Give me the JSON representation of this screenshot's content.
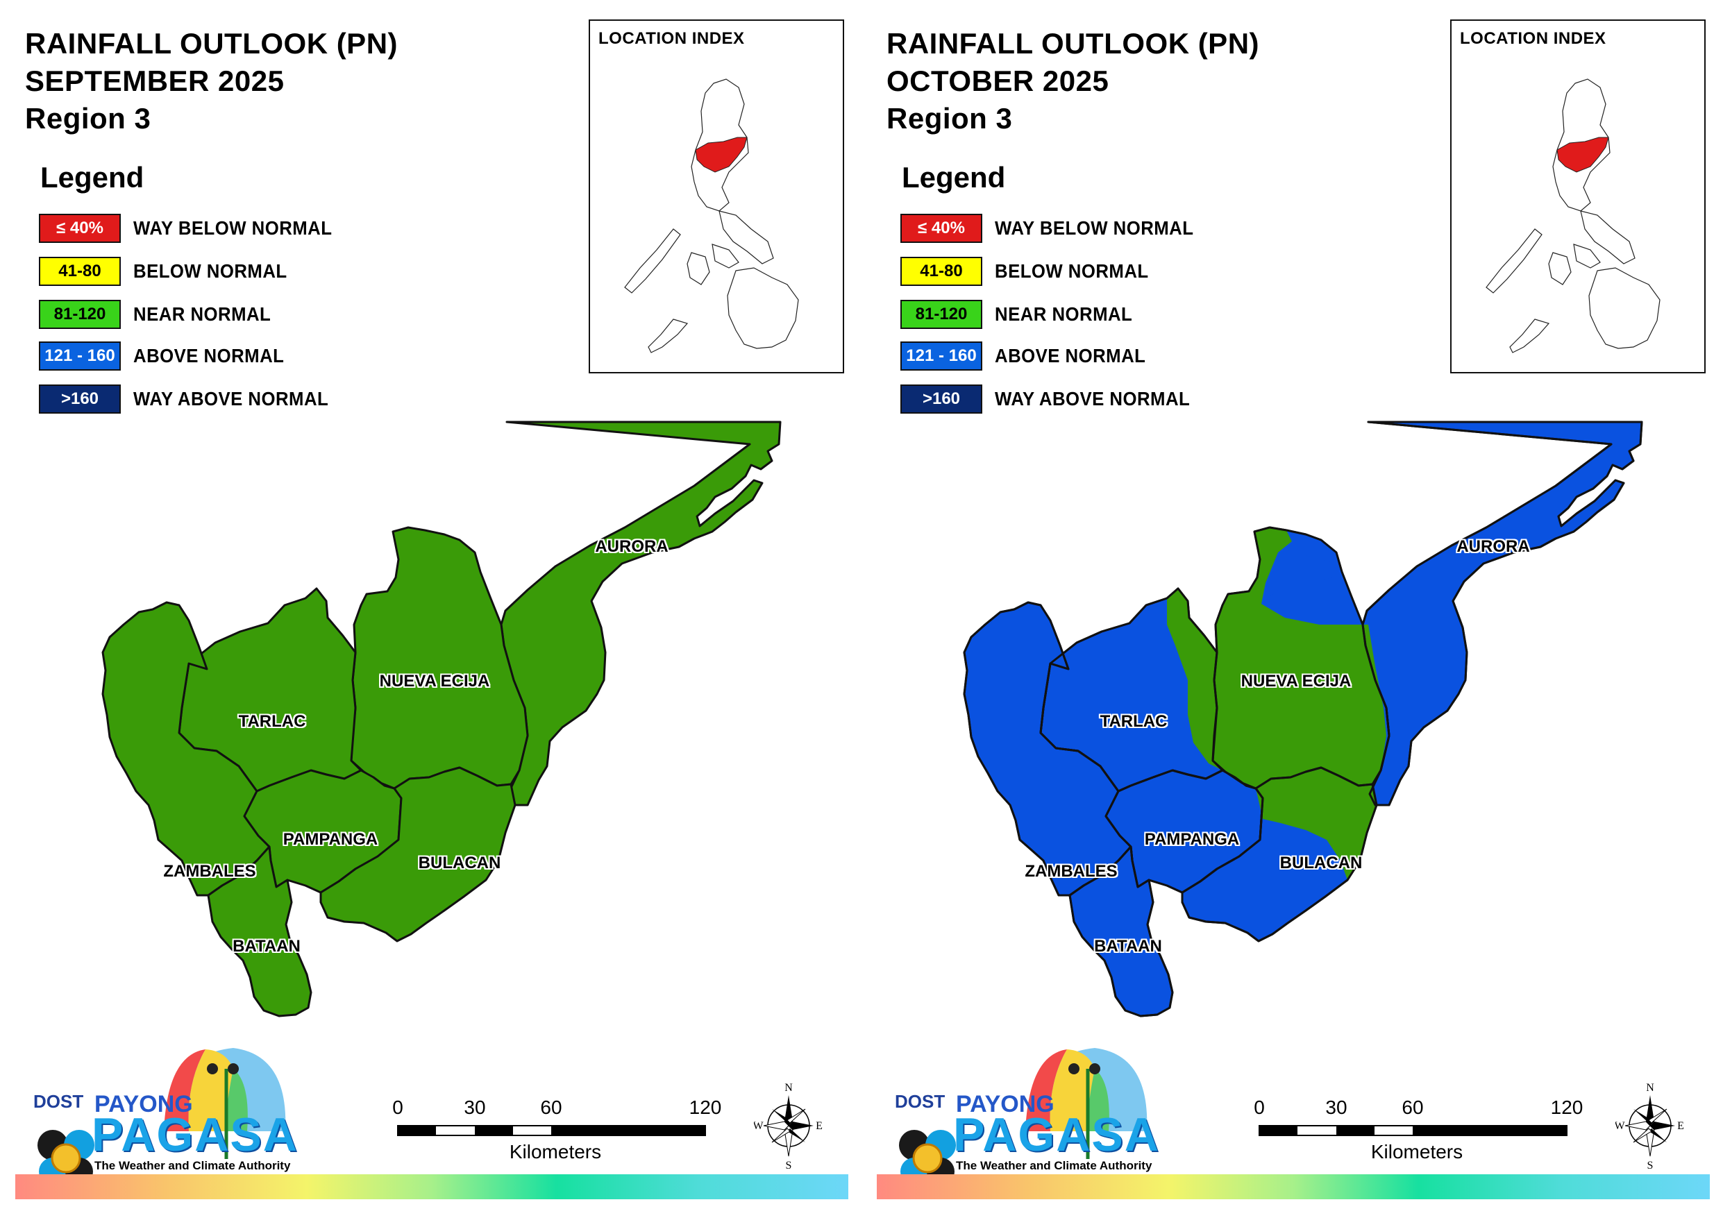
{
  "legend": {
    "title": "Legend",
    "items": [
      {
        "range": "≤ 40%",
        "label": "WAY BELOW NORMAL",
        "color": "#e01b1b",
        "text_color": "#ffffff"
      },
      {
        "range": "41-80",
        "label": "BELOW NORMAL",
        "color": "#ffff00",
        "text_color": "#000000"
      },
      {
        "range": "81-120",
        "label": "NEAR NORMAL",
        "color": "#39d31a",
        "text_color": "#000000"
      },
      {
        "range": "121 - 160",
        "label": "ABOVE NORMAL",
        "color": "#0a63e0",
        "text_color": "#ffffff"
      },
      {
        "range": ">160",
        "label": "WAY ABOVE NORMAL",
        "color": "#0a2a72",
        "text_color": "#ffffff"
      }
    ]
  },
  "location_index": {
    "title": "LOCATION INDEX",
    "highlight_color": "#e01b1b"
  },
  "panels": [
    {
      "title_line1": "RAINFALL OUTLOOK (PN)",
      "title_line2": "SEPTEMBER 2025",
      "title_line3": "Region 3",
      "category": "NEAR NORMAL",
      "provinces": {
        "aurora": "NEAR NORMAL",
        "nueva_ecija": "NEAR NORMAL",
        "tarlac": "NEAR NORMAL",
        "zambales": "NEAR NORMAL",
        "pampanga": "NEAR NORMAL",
        "bulacan": "NEAR NORMAL",
        "bataan": "NEAR NORMAL"
      }
    },
    {
      "title_line1": "RAINFALL OUTLOOK (PN)",
      "title_line2": "OCTOBER 2025",
      "title_line3": "Region 3",
      "category": "ABOVE NORMAL",
      "provinces": {
        "aurora": "ABOVE NORMAL",
        "nueva_ecija": "NEAR NORMAL / ABOVE NORMAL",
        "tarlac": "ABOVE NORMAL",
        "zambales": "ABOVE NORMAL",
        "pampanga": "ABOVE NORMAL",
        "bulacan": "ABOVE NORMAL / NEAR NORMAL",
        "bataan": "ABOVE NORMAL"
      }
    }
  ],
  "province_labels": {
    "aurora": "AURORA",
    "nueva_ecija": "NUEVA ECIJA",
    "tarlac": "TARLAC",
    "pampanga": "PAMPANGA",
    "zambales": "ZAMBALES",
    "bulacan": "BULACAN",
    "bataan": "BATAAN"
  },
  "map_colors": {
    "near_normal_fill": "#3a9b08",
    "above_normal_fill": "#0a52e0",
    "border": "#111111"
  },
  "scale": {
    "ticks": [
      "0",
      "30",
      "60",
      "120"
    ],
    "unit": "Kilometers"
  },
  "compass": {
    "n": "N",
    "s": "S",
    "e": "E",
    "w": "W"
  },
  "logo": {
    "dost": "DOST",
    "payong": "PAYONG",
    "pagasa": "PAGASA",
    "tagline": "The Weather and Climate Authority"
  }
}
